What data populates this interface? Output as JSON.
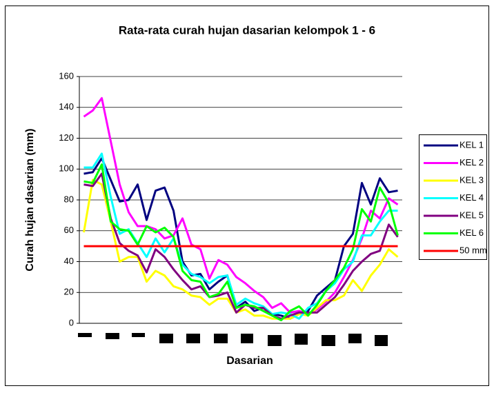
{
  "chart_data": {
    "type": "line",
    "title": "Rata-rata curah hujan dasarian kelompok 1 - 6",
    "x_label": "Dasarian",
    "y_label": "Curah hujan dasarian (mm)",
    "categories": [
      null,
      null,
      null,
      null,
      null,
      null,
      null,
      null,
      null,
      null,
      null,
      null,
      null,
      null,
      null,
      null,
      null,
      null,
      null,
      null,
      null,
      null,
      null,
      null,
      null,
      null,
      null,
      null,
      null,
      null,
      null,
      null,
      null,
      null,
      null,
      null
    ],
    "ylim": [
      0,
      160
    ],
    "yticks": [
      0,
      20,
      40,
      60,
      80,
      100,
      120,
      140,
      160
    ],
    "grid": true,
    "legend": "right",
    "series": [
      {
        "name": "KEL 1",
        "color": "#000080",
        "values": [
          97,
          98,
          107,
          93,
          79,
          80,
          90,
          67,
          86,
          88,
          73,
          40,
          31,
          32,
          22,
          27,
          31,
          10,
          14,
          8,
          10,
          6,
          5,
          3,
          6,
          8,
          18,
          23,
          28,
          50,
          58,
          91,
          77,
          94,
          85,
          86
        ]
      },
      {
        "name": "KEL 2",
        "color": "#ff00ff",
        "values": [
          134,
          138,
          146,
          118,
          90,
          72,
          63,
          63,
          61,
          55,
          57,
          68,
          51,
          48,
          29,
          41,
          38,
          30,
          26,
          21,
          17,
          10,
          13,
          7,
          8,
          6,
          9,
          14,
          20,
          30,
          41,
          55,
          73,
          68,
          81,
          77
        ]
      },
      {
        "name": "KEL 3",
        "color": "#ffff00",
        "values": [
          59,
          93,
          90,
          66,
          40,
          43,
          43,
          27,
          34,
          31,
          24,
          22,
          18,
          17,
          12,
          16,
          16,
          7,
          9,
          5,
          5,
          3,
          3,
          3,
          6,
          5,
          10,
          15,
          15,
          18,
          28,
          21,
          31,
          38,
          48,
          43
        ]
      },
      {
        "name": "KEL 4",
        "color": "#00ffff",
        "values": [
          101,
          101,
          110,
          82,
          58,
          61,
          52,
          43,
          55,
          46,
          55,
          38,
          32,
          30,
          26,
          30,
          31,
          12,
          16,
          13,
          11,
          6,
          7,
          6,
          3,
          10,
          13,
          21,
          26,
          35,
          40,
          57,
          57,
          66,
          73,
          73
        ]
      },
      {
        "name": "KEL 5",
        "color": "#800080",
        "values": [
          90,
          89,
          97,
          68,
          52,
          47,
          44,
          33,
          48,
          43,
          35,
          28,
          22,
          24,
          17,
          18,
          20,
          7,
          12,
          10,
          10,
          5,
          3,
          5,
          7,
          7,
          7,
          12,
          17,
          25,
          34,
          40,
          45,
          47,
          64,
          56
        ]
      },
      {
        "name": "KEL 6",
        "color": "#00ff00",
        "values": [
          92,
          91,
          103,
          66,
          61,
          60,
          51,
          63,
          59,
          62,
          56,
          34,
          28,
          27,
          17,
          19,
          27,
          10,
          12,
          11,
          8,
          5,
          2,
          8,
          11,
          5,
          12,
          21,
          28,
          36,
          48,
          74,
          66,
          88,
          78,
          57
        ]
      },
      {
        "name": "50 mm",
        "color": "#ff0000",
        "values": [
          50,
          50,
          50,
          50,
          50,
          50,
          50,
          50,
          50,
          50,
          50,
          50,
          50,
          50,
          50,
          50,
          50,
          50,
          50,
          50,
          50,
          50,
          50,
          50,
          50,
          50,
          50,
          50,
          50,
          50,
          50,
          50,
          50,
          50,
          50,
          50
        ]
      }
    ]
  }
}
